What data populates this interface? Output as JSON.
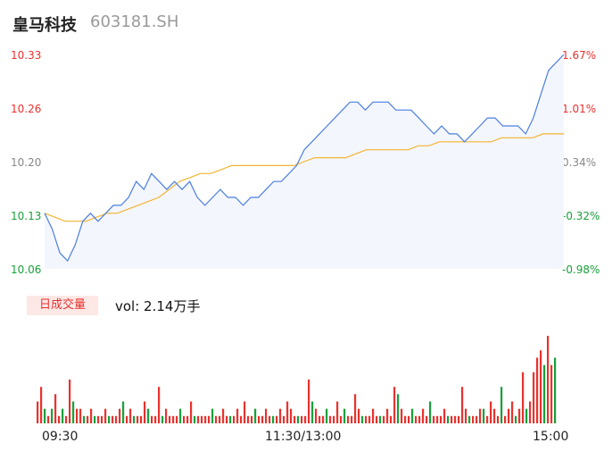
{
  "header": {
    "name": "皇马科技",
    "code": "603181.SH"
  },
  "chart_data": {
    "type": "line",
    "price_ticks": [
      "10.33",
      "10.26",
      "10.20",
      "10.13",
      "10.06"
    ],
    "pct_ticks": [
      "1.67%",
      "1.01%",
      "0.34%",
      "-0.32%",
      "-0.98%"
    ],
    "ylim": [
      10.06,
      10.33
    ],
    "time_labels": [
      "09:30",
      "11:30/13:00",
      "15:00"
    ],
    "series": [
      {
        "values": [
          10.13,
          10.11,
          10.08,
          10.07,
          10.09,
          10.12,
          10.13,
          10.12,
          10.13,
          10.14,
          10.14,
          10.15,
          10.17,
          10.16,
          10.18,
          10.17,
          10.16,
          10.17,
          10.16,
          10.17,
          10.15,
          10.14,
          10.15,
          10.16,
          10.15,
          10.15,
          10.14,
          10.15,
          10.15,
          10.16,
          10.17,
          10.17,
          10.18,
          10.19,
          10.21,
          10.22,
          10.23,
          10.24,
          10.25,
          10.26,
          10.27,
          10.27,
          10.26,
          10.27,
          10.27,
          10.27,
          10.26,
          10.26,
          10.26,
          10.25,
          10.24,
          10.23,
          10.24,
          10.23,
          10.23,
          10.22,
          10.23,
          10.24,
          10.25,
          10.25,
          10.24,
          10.24,
          10.24,
          10.23,
          10.25,
          10.28,
          10.31,
          10.32,
          10.33
        ]
      },
      {
        "values": [
          10.13,
          10.125,
          10.12,
          10.12,
          10.12,
          10.125,
          10.13,
          10.13,
          10.135,
          10.14,
          10.145,
          10.15,
          10.16,
          10.17,
          10.175,
          10.18,
          10.18,
          10.185,
          10.19,
          10.19,
          10.19,
          10.19,
          10.19,
          10.19,
          10.19,
          10.195,
          10.2,
          10.2,
          10.2,
          10.2,
          10.205,
          10.21,
          10.21,
          10.21,
          10.21,
          10.21,
          10.215,
          10.215,
          10.22,
          10.22,
          10.22,
          10.22,
          10.22,
          10.22,
          10.225,
          10.225,
          10.225,
          10.225,
          10.23,
          10.23,
          10.23
        ]
      }
    ],
    "volume": {
      "label": "日成交量",
      "value_text": "vol: 2.14万手",
      "bars": [
        [
          3,
          1
        ],
        [
          5,
          1
        ],
        [
          2,
          -1
        ],
        [
          1,
          1
        ],
        [
          2,
          -1
        ],
        [
          4,
          1
        ],
        [
          1,
          1
        ],
        [
          2,
          -1
        ],
        [
          1,
          1
        ],
        [
          6,
          1
        ],
        [
          3,
          -1
        ],
        [
          2,
          1
        ],
        [
          2,
          1
        ],
        [
          1,
          -1
        ],
        [
          1,
          1
        ],
        [
          2,
          1
        ],
        [
          1,
          -1
        ],
        [
          1,
          1
        ],
        [
          1,
          1
        ],
        [
          2,
          1
        ],
        [
          1,
          -1
        ],
        [
          1,
          1
        ],
        [
          1,
          1
        ],
        [
          2,
          1
        ],
        [
          3,
          -1
        ],
        [
          1,
          1
        ],
        [
          2,
          1
        ],
        [
          1,
          -1
        ],
        [
          1,
          1
        ],
        [
          1,
          1
        ],
        [
          3,
          1
        ],
        [
          2,
          -1
        ],
        [
          1,
          1
        ],
        [
          1,
          1
        ],
        [
          5,
          1
        ],
        [
          1,
          -1
        ],
        [
          2,
          1
        ],
        [
          1,
          1
        ],
        [
          1,
          1
        ],
        [
          1,
          1
        ],
        [
          2,
          -1
        ],
        [
          1,
          1
        ],
        [
          1,
          1
        ],
        [
          3,
          1
        ],
        [
          1,
          -1
        ],
        [
          1,
          1
        ],
        [
          1,
          1
        ],
        [
          1,
          1
        ],
        [
          1,
          1
        ],
        [
          2,
          -1
        ],
        [
          1,
          1
        ],
        [
          1,
          1
        ],
        [
          2,
          1
        ],
        [
          1,
          1
        ],
        [
          1,
          -1
        ],
        [
          1,
          1
        ],
        [
          2,
          1
        ],
        [
          1,
          1
        ],
        [
          3,
          1
        ],
        [
          1,
          1
        ],
        [
          1,
          1
        ],
        [
          2,
          -1
        ],
        [
          1,
          1
        ],
        [
          1,
          1
        ],
        [
          2,
          1
        ],
        [
          1,
          1
        ],
        [
          1,
          -1
        ],
        [
          1,
          1
        ],
        [
          2,
          1
        ],
        [
          1,
          1
        ],
        [
          3,
          1
        ],
        [
          2,
          1
        ],
        [
          1,
          1
        ],
        [
          1,
          -1
        ],
        [
          1,
          1
        ],
        [
          1,
          1
        ],
        [
          6,
          1
        ],
        [
          3,
          -1
        ],
        [
          2,
          1
        ],
        [
          1,
          1
        ],
        [
          1,
          1
        ],
        [
          2,
          -1
        ],
        [
          1,
          1
        ],
        [
          1,
          1
        ],
        [
          3,
          1
        ],
        [
          1,
          1
        ],
        [
          2,
          -1
        ],
        [
          1,
          1
        ],
        [
          1,
          1
        ],
        [
          4,
          1
        ],
        [
          2,
          1
        ],
        [
          1,
          -1
        ],
        [
          1,
          1
        ],
        [
          1,
          1
        ],
        [
          2,
          1
        ],
        [
          1,
          1
        ],
        [
          1,
          -1
        ],
        [
          1,
          1
        ],
        [
          2,
          1
        ],
        [
          1,
          1
        ],
        [
          5,
          1
        ],
        [
          4,
          -1
        ],
        [
          2,
          1
        ],
        [
          1,
          1
        ],
        [
          1,
          1
        ],
        [
          2,
          -1
        ],
        [
          1,
          1
        ],
        [
          1,
          1
        ],
        [
          2,
          1
        ],
        [
          1,
          1
        ],
        [
          3,
          -1
        ],
        [
          1,
          1
        ],
        [
          1,
          1
        ],
        [
          1,
          1
        ],
        [
          2,
          1
        ],
        [
          1,
          -1
        ],
        [
          1,
          1
        ],
        [
          1,
          1
        ],
        [
          1,
          1
        ],
        [
          5,
          1
        ],
        [
          2,
          1
        ],
        [
          1,
          -1
        ],
        [
          1,
          1
        ],
        [
          1,
          1
        ],
        [
          2,
          1
        ],
        [
          2,
          -1
        ],
        [
          1,
          1
        ],
        [
          3,
          1
        ],
        [
          2,
          1
        ],
        [
          1,
          1
        ],
        [
          5,
          -1
        ],
        [
          1,
          1
        ],
        [
          2,
          1
        ],
        [
          3,
          1
        ],
        [
          1,
          -1
        ],
        [
          2,
          1
        ],
        [
          7,
          1
        ],
        [
          2,
          -1
        ],
        [
          3,
          1
        ],
        [
          7,
          1
        ],
        [
          9,
          1
        ],
        [
          10,
          1
        ],
        [
          8,
          -1
        ],
        [
          12,
          1
        ],
        [
          8,
          1
        ],
        [
          9,
          -1
        ]
      ]
    },
    "colors": {
      "price": "#4a7fe0",
      "avg": "#f2b431",
      "up": "#e8322e",
      "down": "#18a03a",
      "fill": "#f4f6fd"
    }
  }
}
